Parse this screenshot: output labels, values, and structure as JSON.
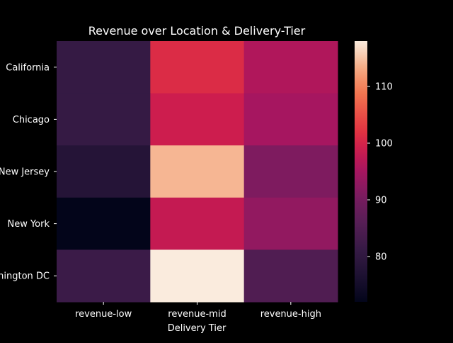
{
  "chart_data": {
    "type": "heatmap",
    "title": "Revenue over Location & Delivery-Tier",
    "xlabel": "Delivery Tier",
    "ylabel": "",
    "x_categories": [
      "revenue-low",
      "revenue-mid",
      "revenue-high"
    ],
    "y_categories": [
      "California",
      "Chicago",
      "New Jersey",
      "New York",
      "Washington DC"
    ],
    "values": [
      [
        81,
        101,
        96
      ],
      [
        81,
        99,
        95
      ],
      [
        78,
        114,
        91
      ],
      [
        72,
        98,
        93
      ],
      [
        82,
        118,
        85
      ]
    ],
    "colorbar": {
      "min": 72,
      "max": 118,
      "ticks": [
        80,
        90,
        100,
        110
      ],
      "colormap": "rocket"
    }
  }
}
